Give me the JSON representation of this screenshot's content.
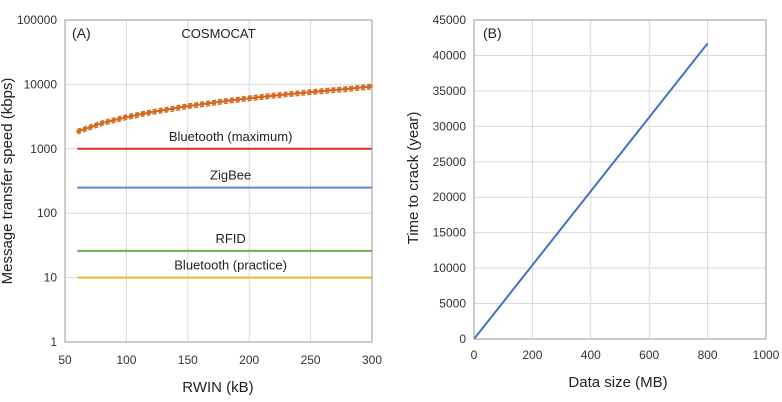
{
  "chart_data": [
    {
      "panel": "(A)",
      "type": "line",
      "xlabel": "RWIN (kB)",
      "ylabel": "Message transfer speed (kbps)",
      "xlim": [
        50,
        300
      ],
      "ylim": [
        1,
        100000
      ],
      "yscale": "log",
      "grid": true,
      "x_ticks": [
        "50",
        "100",
        "150",
        "200",
        "250",
        "300"
      ],
      "y_ticks": [
        "1",
        "10",
        "100",
        "1000",
        "10000",
        "100000"
      ],
      "series": [
        {
          "name": "COSMOCAT",
          "color": "#d2691e",
          "style": "dashed-band",
          "x": [
            60,
            80,
            100,
            120,
            150,
            180,
            200,
            220,
            250,
            280,
            300
          ],
          "y": [
            1850,
            2500,
            3100,
            3700,
            4600,
            5500,
            6100,
            6700,
            7600,
            8500,
            9300
          ]
        },
        {
          "name": "Bluetooth (maximum)",
          "color": "#e03020",
          "x": [
            60,
            300
          ],
          "y": [
            1000,
            1000
          ]
        },
        {
          "name": "ZigBee",
          "color": "#5b86d6",
          "x": [
            60,
            300
          ],
          "y": [
            250,
            250
          ]
        },
        {
          "name": "RFID",
          "color": "#70ad47",
          "x": [
            60,
            300
          ],
          "y": [
            26,
            26
          ]
        },
        {
          "name": "Bluetooth (practice)",
          "color": "#f2b830",
          "x": [
            60,
            300
          ],
          "y": [
            10,
            10
          ]
        }
      ]
    },
    {
      "panel": "(B)",
      "type": "line",
      "xlabel": "Data size (MB)",
      "ylabel": "Time to crack (year)",
      "xlim": [
        0,
        1000
      ],
      "ylim": [
        0,
        45000
      ],
      "grid": true,
      "x_ticks": [
        "0",
        "200",
        "400",
        "600",
        "800",
        "1000"
      ],
      "y_ticks": [
        "0",
        "5000",
        "10000",
        "15000",
        "20000",
        "25000",
        "30000",
        "35000",
        "40000",
        "45000"
      ],
      "series": [
        {
          "color": "#4472c4",
          "x": [
            0,
            800
          ],
          "y": [
            0,
            41700
          ]
        }
      ]
    }
  ]
}
